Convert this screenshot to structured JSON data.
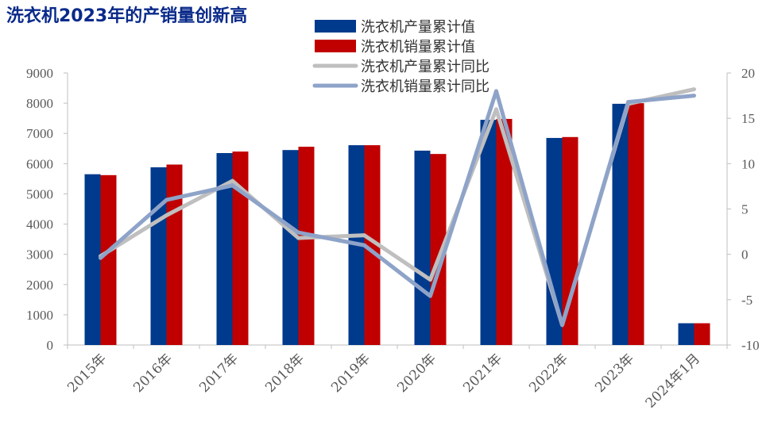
{
  "chart_data": {
    "type": "bar",
    "title": "洗衣机2023年的产销量创新高",
    "categories": [
      "2015年",
      "2016年",
      "2017年",
      "2018年",
      "2019年",
      "2020年",
      "2021年",
      "2022年",
      "2023年",
      "2024年1月"
    ],
    "series": [
      {
        "name": "洗衣机产量累计值",
        "type": "bar",
        "axis": "left",
        "color": "#003a8c",
        "values": [
          5650,
          5880,
          6350,
          6450,
          6610,
          6430,
          7450,
          6850,
          7980,
          720
        ]
      },
      {
        "name": "洗衣机销量累计值",
        "type": "bar",
        "axis": "left",
        "color": "#c00000",
        "values": [
          5620,
          5970,
          6400,
          6560,
          6610,
          6320,
          7480,
          6880,
          8000,
          720
        ]
      },
      {
        "name": "洗衣机产量累计同比",
        "type": "line",
        "axis": "right",
        "color": "#bfbfbf",
        "values": [
          -0.2,
          4.3,
          8.1,
          1.8,
          2.1,
          -2.8,
          16.0,
          -7.8,
          16.6,
          18.2
        ]
      },
      {
        "name": "洗衣机销量累计同比",
        "type": "line",
        "axis": "right",
        "color": "#8ea3c8",
        "values": [
          -0.4,
          6.0,
          7.6,
          2.4,
          1.0,
          -4.6,
          18.0,
          -7.8,
          16.8,
          17.5
        ]
      }
    ],
    "ylim_left": [
      0,
      9000
    ],
    "yticks_left": [
      0,
      1000,
      2000,
      3000,
      4000,
      5000,
      6000,
      7000,
      8000,
      9000
    ],
    "ylim_right": [
      -10,
      20
    ],
    "yticks_right": [
      -10,
      -5,
      0,
      5,
      10,
      15,
      20
    ],
    "grid": false,
    "legend": "top-center"
  }
}
